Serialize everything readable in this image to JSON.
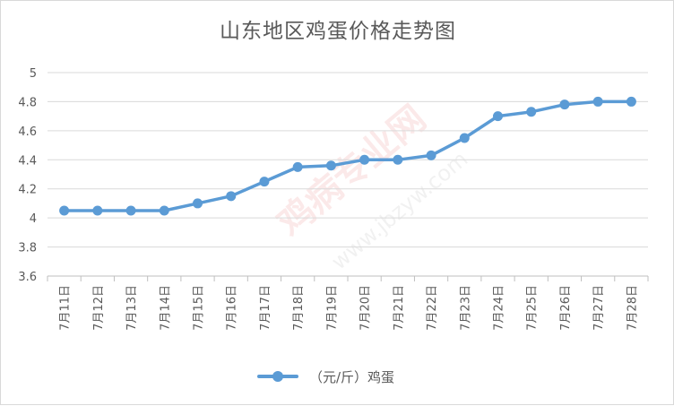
{
  "chart_data": {
    "type": "line",
    "title": "山东地区鸡蛋价格走势图",
    "categories": [
      "7月11日",
      "7月12日",
      "7月13日",
      "7月14日",
      "7月15日",
      "7月16日",
      "7月17日",
      "7月18日",
      "7月19日",
      "7月20日",
      "7月21日",
      "7月22日",
      "7月23日",
      "7月24日",
      "7月25日",
      "7月26日",
      "7月27日",
      "7月28日"
    ],
    "series": [
      {
        "name": "（元/斤）鸡蛋",
        "color": "#5b9bd5",
        "values": [
          4.05,
          4.05,
          4.05,
          4.05,
          4.1,
          4.15,
          4.25,
          4.35,
          4.36,
          4.4,
          4.4,
          4.43,
          4.55,
          4.7,
          4.73,
          4.78,
          4.8,
          4.8
        ]
      }
    ],
    "ylim": [
      3.6,
      5
    ],
    "yticks": [
      "3.6",
      "3.8",
      "4",
      "4.2",
      "4.4",
      "4.6",
      "4.8",
      "5"
    ],
    "grid": true,
    "legend": "bottom"
  },
  "watermark": "鸡病专业网 www.jbzyw.com"
}
